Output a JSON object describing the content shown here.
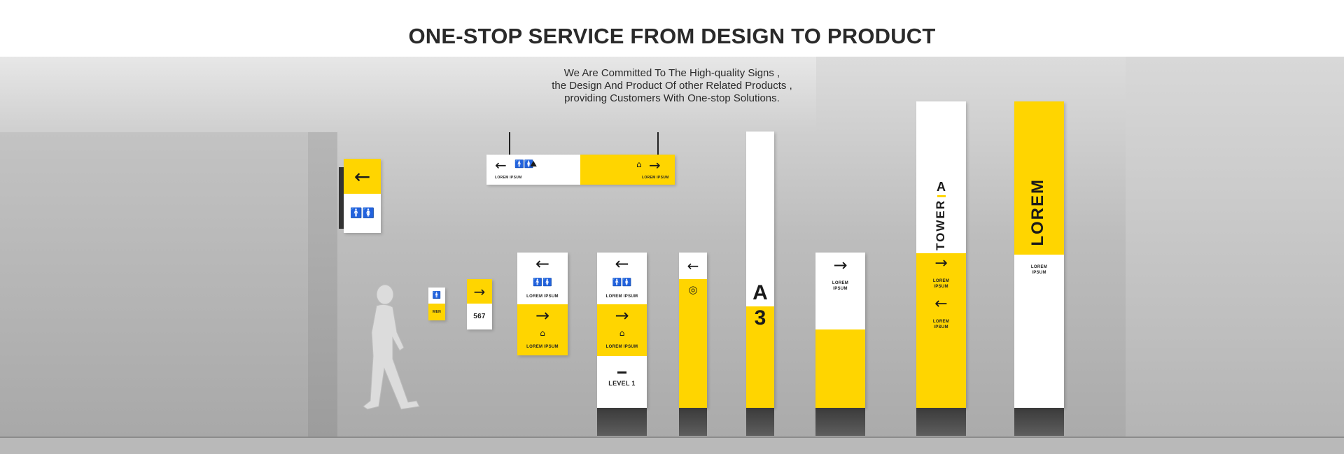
{
  "title": "ONE-STOP SERVICE FROM DESIGN TO PRODUCT",
  "subtitle": {
    "line1": "We Are Committed To The High-quality Signs ,",
    "line2": "the Design And Product Of other Related Products ,",
    "line3": "providing Customers With One-stop Solutions."
  },
  "colors": {
    "accent": "#ffd500",
    "dark": "#1a1a1a",
    "wall": "#bdbdbd"
  },
  "icons": {
    "arrow_left": "←",
    "arrow_right": "→",
    "restroom": "🚹🚺",
    "escalator": "⛰"
  },
  "signs": {
    "hanging_left_label": "LOREM IPSUM",
    "hanging_right_label": "LOREM IPSUM",
    "small_men_label": "MEN",
    "small_number": "567",
    "mid_sign_label_top": "LOREM IPSUM",
    "mid_sign_label_bottom": "LOREM IPSUM",
    "tall1_label_top": "LOREM IPSUM",
    "tall1_label_mid": "LOREM IPSUM",
    "tall1_level": "LEVEL 1",
    "pillar_a": "A",
    "pillar_3": "3",
    "panel_lorem": "LOREM\nIPSUM",
    "tower_text": "TOWER",
    "tower_letter": "A",
    "tower_label1": "LOREM\nIPSUM",
    "tower_label2": "LOREM\nIPSUM",
    "lorem_big": "LOREM",
    "lorem_small": "LOREM\nIPSUM"
  }
}
